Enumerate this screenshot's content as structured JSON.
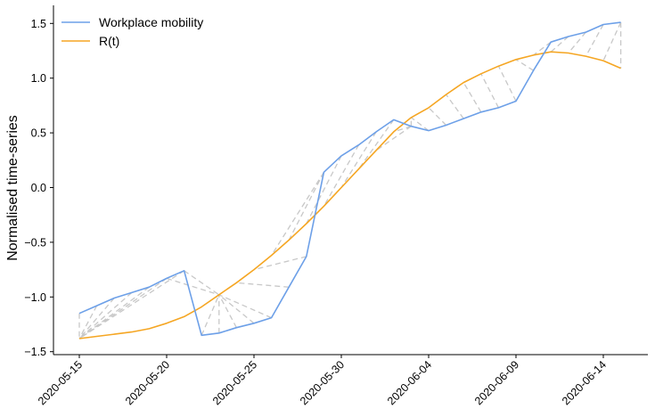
{
  "chart_data": {
    "type": "line",
    "ylabel": "Normalised time-series",
    "xlabel": "",
    "ylim": [
      -1.52,
      1.65
    ],
    "xticks": [
      "2020-05-15",
      "2020-05-20",
      "2020-05-25",
      "2020-05-30",
      "2020-06-04",
      "2020-06-09",
      "2020-06-14"
    ],
    "yticks": [
      -1.5,
      -1.0,
      -0.5,
      0.0,
      0.5,
      1.0,
      1.5
    ],
    "ytick_labels": [
      "−1.5",
      "−1.0",
      "−0.5",
      "0.0",
      "0.5",
      "1.0",
      "1.5"
    ],
    "grid": false,
    "legend_position": "top-left",
    "x": [
      "2020-05-15",
      "2020-05-16",
      "2020-05-17",
      "2020-05-18",
      "2020-05-19",
      "2020-05-20",
      "2020-05-21",
      "2020-05-22",
      "2020-05-23",
      "2020-05-24",
      "2020-05-25",
      "2020-05-26",
      "2020-05-27",
      "2020-05-28",
      "2020-05-29",
      "2020-05-30",
      "2020-05-31",
      "2020-06-01",
      "2020-06-02",
      "2020-06-03",
      "2020-06-04",
      "2020-06-05",
      "2020-06-06",
      "2020-06-07",
      "2020-06-08",
      "2020-06-09",
      "2020-06-10",
      "2020-06-11",
      "2020-06-12",
      "2020-06-13",
      "2020-06-14",
      "2020-06-15"
    ],
    "series": [
      {
        "name": "Workplace mobility",
        "color": "#6da0e8",
        "values": [
          -1.15,
          -1.08,
          -1.01,
          -0.96,
          -0.91,
          -0.83,
          -0.76,
          -1.35,
          -1.33,
          -1.28,
          -1.24,
          -1.19,
          -0.91,
          -0.63,
          0.14,
          0.29,
          0.39,
          0.51,
          0.62,
          0.56,
          0.52,
          0.57,
          0.63,
          0.69,
          0.73,
          0.79,
          1.07,
          1.33,
          1.38,
          1.42,
          1.49,
          1.51
        ]
      },
      {
        "name": "R(t)",
        "color": "#f5a623",
        "values": [
          -1.38,
          -1.36,
          -1.34,
          -1.32,
          -1.29,
          -1.24,
          -1.18,
          -1.09,
          -0.98,
          -0.87,
          -0.75,
          -0.62,
          -0.48,
          -0.33,
          -0.17,
          0.0,
          0.17,
          0.34,
          0.51,
          0.64,
          0.73,
          0.85,
          0.96,
          1.04,
          1.11,
          1.17,
          1.21,
          1.24,
          1.23,
          1.2,
          1.16,
          1.09
        ]
      }
    ],
    "connector_color": "#c8c8c8",
    "connectors": [
      [
        0,
        0
      ],
      [
        1,
        0
      ],
      [
        2,
        0
      ],
      [
        3,
        0
      ],
      [
        4,
        0
      ],
      [
        5,
        0
      ],
      [
        6,
        0
      ],
      [
        7,
        8
      ],
      [
        8,
        8
      ],
      [
        6,
        8
      ],
      [
        5,
        8
      ],
      [
        9,
        8
      ],
      [
        10,
        8
      ],
      [
        11,
        8
      ],
      [
        12,
        9
      ],
      [
        13,
        10
      ],
      [
        14,
        11
      ],
      [
        14,
        12
      ],
      [
        15,
        13
      ],
      [
        16,
        14
      ],
      [
        17,
        15
      ],
      [
        18,
        16
      ],
      [
        19,
        17
      ],
      [
        19,
        18
      ],
      [
        19,
        19
      ],
      [
        20,
        19
      ],
      [
        21,
        20
      ],
      [
        22,
        21
      ],
      [
        23,
        22
      ],
      [
        24,
        23
      ],
      [
        25,
        24
      ],
      [
        26,
        25
      ],
      [
        27,
        26
      ],
      [
        28,
        27
      ],
      [
        29,
        28
      ],
      [
        30,
        29
      ],
      [
        31,
        30
      ],
      [
        31,
        31
      ]
    ]
  }
}
